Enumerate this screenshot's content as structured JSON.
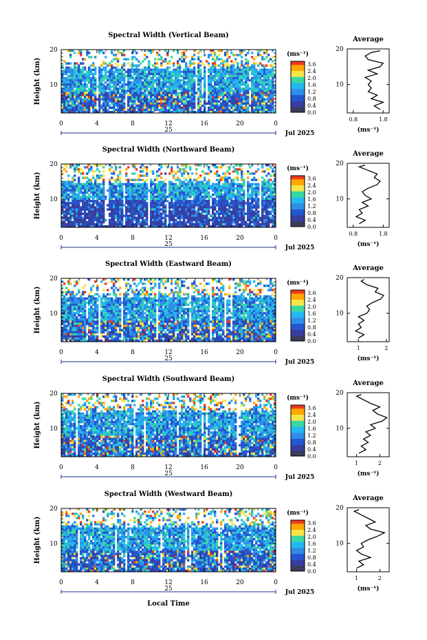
{
  "figure": {
    "date_label": "Jul 2025",
    "day_label": "25",
    "xaxis_label": "Local Time"
  },
  "colorbar": {
    "unit_label": "(ms⁻¹)",
    "tick_labels": [
      "3.6",
      "2.4",
      "2.0",
      "1.6",
      "1.2",
      "0.8",
      "0.4",
      "0.0"
    ],
    "colors": [
      "#f03a1e",
      "#ffa700",
      "#f5e64b",
      "#3ad7a3",
      "#23b9f0",
      "#2f8ee8",
      "#2457cf",
      "#383ea0",
      "#3c3c5a"
    ]
  },
  "chart_data": [
    {
      "type": "heatmap",
      "title": "Spectral Width (Vertical Beam)",
      "ylabel": "Height (km)",
      "xlim": [
        0,
        24
      ],
      "ylim": [
        2,
        20
      ],
      "x_ticks": [
        "0",
        "4",
        "8",
        "12",
        "16",
        "20",
        "0"
      ],
      "y_ticks": [
        "20",
        "10"
      ],
      "profile": {
        "title": "Average",
        "xlabel": "(ms⁻¹)",
        "x_ticks": [
          "0.8",
          "1.8"
        ],
        "xlim": [
          0.6,
          2.0
        ],
        "y_ticks": [
          "20",
          "10"
        ],
        "heights": [
          3,
          4,
          5,
          6,
          7,
          8,
          9,
          10,
          11,
          12,
          13,
          14,
          15,
          16,
          17,
          18,
          19,
          19.5
        ],
        "values": [
          1.7,
          1.5,
          1.8,
          1.4,
          1.6,
          1.3,
          1.4,
          1.3,
          1.4,
          1.2,
          1.6,
          1.3,
          1.7,
          1.8,
          1.3,
          1.2,
          1.4,
          1.7
        ]
      }
    },
    {
      "type": "heatmap",
      "title": "Spectral Width (Northward Beam)",
      "ylabel": "Height (km)",
      "xlim": [
        0,
        24
      ],
      "ylim": [
        2,
        20
      ],
      "x_ticks": [
        "0",
        "4",
        "8",
        "12",
        "16",
        "20",
        "0"
      ],
      "y_ticks": [
        "20",
        "10"
      ],
      "profile": {
        "title": "Average",
        "xlabel": "(ms⁻¹)",
        "x_ticks": [
          "0.8",
          "1.8"
        ],
        "xlim": [
          0.6,
          2.0
        ],
        "y_ticks": [
          "20",
          "10"
        ],
        "heights": [
          3,
          4,
          5,
          6,
          7,
          8,
          9,
          10,
          11,
          12,
          13,
          14,
          15,
          16,
          17,
          18,
          19,
          19.5
        ],
        "values": [
          1.0,
          1.2,
          0.9,
          1.1,
          1.0,
          1.3,
          1.1,
          1.4,
          1.2,
          1.1,
          1.3,
          1.6,
          1.7,
          1.5,
          1.6,
          1.3,
          1.0,
          1.2
        ]
      }
    },
    {
      "type": "heatmap",
      "title": "Spectral Width (Eastward Beam)",
      "ylabel": "Height (km)",
      "xlim": [
        0,
        24
      ],
      "ylim": [
        2,
        20
      ],
      "x_ticks": [
        "0",
        "4",
        "8",
        "12",
        "16",
        "20",
        "0"
      ],
      "y_ticks": [
        "20",
        "10"
      ],
      "profile": {
        "title": "Average",
        "xlabel": "(ms⁻¹)",
        "x_ticks": [
          "1",
          "2"
        ],
        "xlim": [
          0.6,
          2.1
        ],
        "y_ticks": [
          "20",
          "10"
        ],
        "heights": [
          3,
          4,
          5,
          6,
          7,
          8,
          9,
          10,
          11,
          12,
          13,
          14,
          15,
          16,
          17,
          18,
          19,
          19.5
        ],
        "values": [
          1.0,
          1.2,
          0.9,
          1.1,
          1.0,
          1.2,
          1.0,
          1.3,
          1.4,
          1.3,
          1.5,
          1.8,
          1.9,
          1.6,
          1.7,
          1.3,
          1.1,
          1.2
        ]
      }
    },
    {
      "type": "heatmap",
      "title": "Spectral Width (Southward Beam)",
      "ylabel": "Height (km)",
      "xlim": [
        0,
        24
      ],
      "ylim": [
        2,
        20
      ],
      "x_ticks": [
        "0",
        "4",
        "8",
        "12",
        "16",
        "20",
        "0"
      ],
      "y_ticks": [
        "20",
        "10"
      ],
      "profile": {
        "title": "Average",
        "xlabel": "(ms⁻¹)",
        "x_ticks": [
          "1",
          "2"
        ],
        "xlim": [
          0.6,
          2.4
        ],
        "y_ticks": [
          "20",
          "10"
        ],
        "heights": [
          3,
          4,
          5,
          6,
          7,
          8,
          9,
          10,
          11,
          12,
          13,
          14,
          15,
          16,
          17,
          18,
          19,
          19.5
        ],
        "values": [
          1.1,
          1.4,
          1.2,
          1.5,
          1.3,
          1.6,
          1.4,
          1.8,
          1.6,
          2.1,
          2.3,
          1.9,
          1.7,
          2.0,
          1.6,
          1.3,
          1.0,
          1.2
        ]
      }
    },
    {
      "type": "heatmap",
      "title": "Spectral Width (Westward Beam)",
      "ylabel": "Height (km)",
      "xlim": [
        0,
        24
      ],
      "ylim": [
        2,
        20
      ],
      "x_ticks": [
        "0",
        "4",
        "8",
        "12",
        "16",
        "20",
        "0"
      ],
      "y_ticks": [
        "20",
        "10"
      ],
      "profile": {
        "title": "Average",
        "xlabel": "(ms⁻¹)",
        "x_ticks": [
          "1",
          "2"
        ],
        "xlim": [
          0.6,
          2.4
        ],
        "y_ticks": [
          "20",
          "10"
        ],
        "heights": [
          3,
          4,
          5,
          6,
          7,
          8,
          9,
          10,
          11,
          12,
          13,
          14,
          15,
          16,
          17,
          18,
          19,
          19.5
        ],
        "values": [
          1.0,
          1.3,
          1.1,
          1.6,
          1.2,
          1.0,
          1.3,
          1.2,
          1.5,
          1.9,
          2.2,
          1.6,
          1.4,
          1.8,
          1.5,
          1.2,
          0.9,
          1.1
        ]
      }
    }
  ]
}
